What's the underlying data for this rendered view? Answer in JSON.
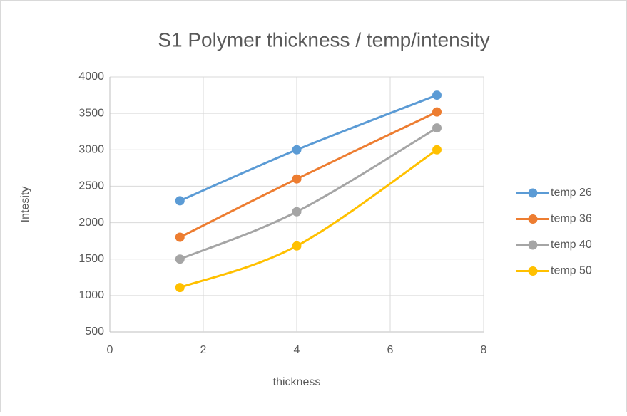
{
  "chart_data": {
    "type": "line",
    "title": "S1 Polymer thickness / temp/intensity",
    "x_label": "thickness",
    "y_label": "Intesity",
    "x": [
      1.5,
      4,
      7
    ],
    "series": [
      {
        "name": "temp 26",
        "color": "#5b9bd5",
        "values": [
          2300,
          3000,
          3750
        ]
      },
      {
        "name": "temp 36",
        "color": "#ed7d31",
        "values": [
          1800,
          2600,
          3520
        ]
      },
      {
        "name": "temp 40",
        "color": "#a5a5a5",
        "values": [
          1500,
          2150,
          3300
        ]
      },
      {
        "name": "temp 50",
        "color": "#ffc000",
        "values": [
          1110,
          1680,
          3000
        ]
      }
    ],
    "xlim": [
      0,
      8
    ],
    "xticks": [
      0,
      2,
      4,
      6,
      8
    ],
    "ylim": [
      500,
      4000
    ],
    "yticks": [
      500,
      1000,
      1500,
      2000,
      2500,
      3000,
      3500,
      4000
    ],
    "grid": true,
    "smooth": true,
    "legend": "right"
  }
}
